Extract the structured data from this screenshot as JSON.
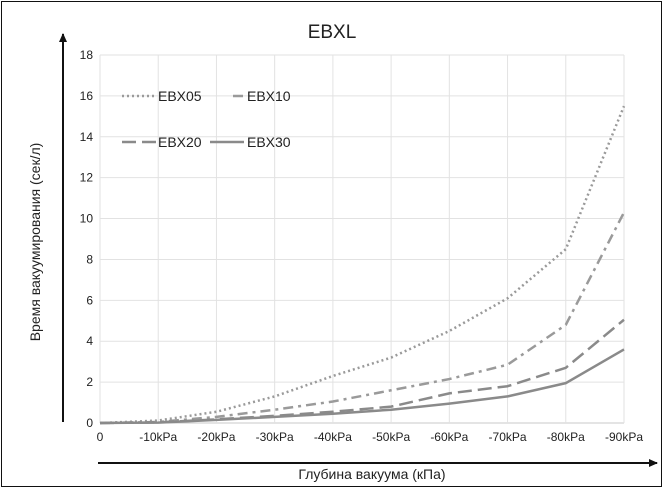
{
  "chart_data": {
    "type": "line",
    "title": "EBXL",
    "xlabel": "Глубина вакуума (кПа)",
    "ylabel": "Время вакуумирования (сек/л)",
    "categories": [
      "0",
      "-10kPa",
      "-20kPa",
      "-30kPa",
      "-40kPa",
      "-50kPa",
      "-60kPa",
      "-70kPa",
      "-80kPa",
      "-90kPa"
    ],
    "yticks": [
      "0",
      "2",
      "4",
      "6",
      "8",
      "10",
      "12",
      "14",
      "16",
      "18"
    ],
    "ylim": [
      0,
      18
    ],
    "grid": true,
    "legend_position": "top-left",
    "series": [
      {
        "name": "EBX05",
        "style": "dotted",
        "color": "#9a9a9a",
        "values": [
          0,
          0.12,
          0.55,
          1.3,
          2.3,
          3.2,
          4.5,
          6.1,
          8.5,
          15.5
        ]
      },
      {
        "name": "EBX10",
        "style": "dashdot",
        "color": "#9a9a9a",
        "values": [
          0,
          0.05,
          0.3,
          0.65,
          1.05,
          1.6,
          2.15,
          2.85,
          4.8,
          10.3
        ]
      },
      {
        "name": "EBX20",
        "style": "dashed",
        "color": "#8a8a8a",
        "values": [
          0,
          0.03,
          0.18,
          0.35,
          0.55,
          0.8,
          1.45,
          1.8,
          2.7,
          5.05
        ]
      },
      {
        "name": "EBX30",
        "style": "solid",
        "color": "#8a8a8a",
        "values": [
          0,
          0.02,
          0.15,
          0.3,
          0.45,
          0.65,
          0.95,
          1.3,
          1.95,
          3.6
        ]
      }
    ]
  }
}
